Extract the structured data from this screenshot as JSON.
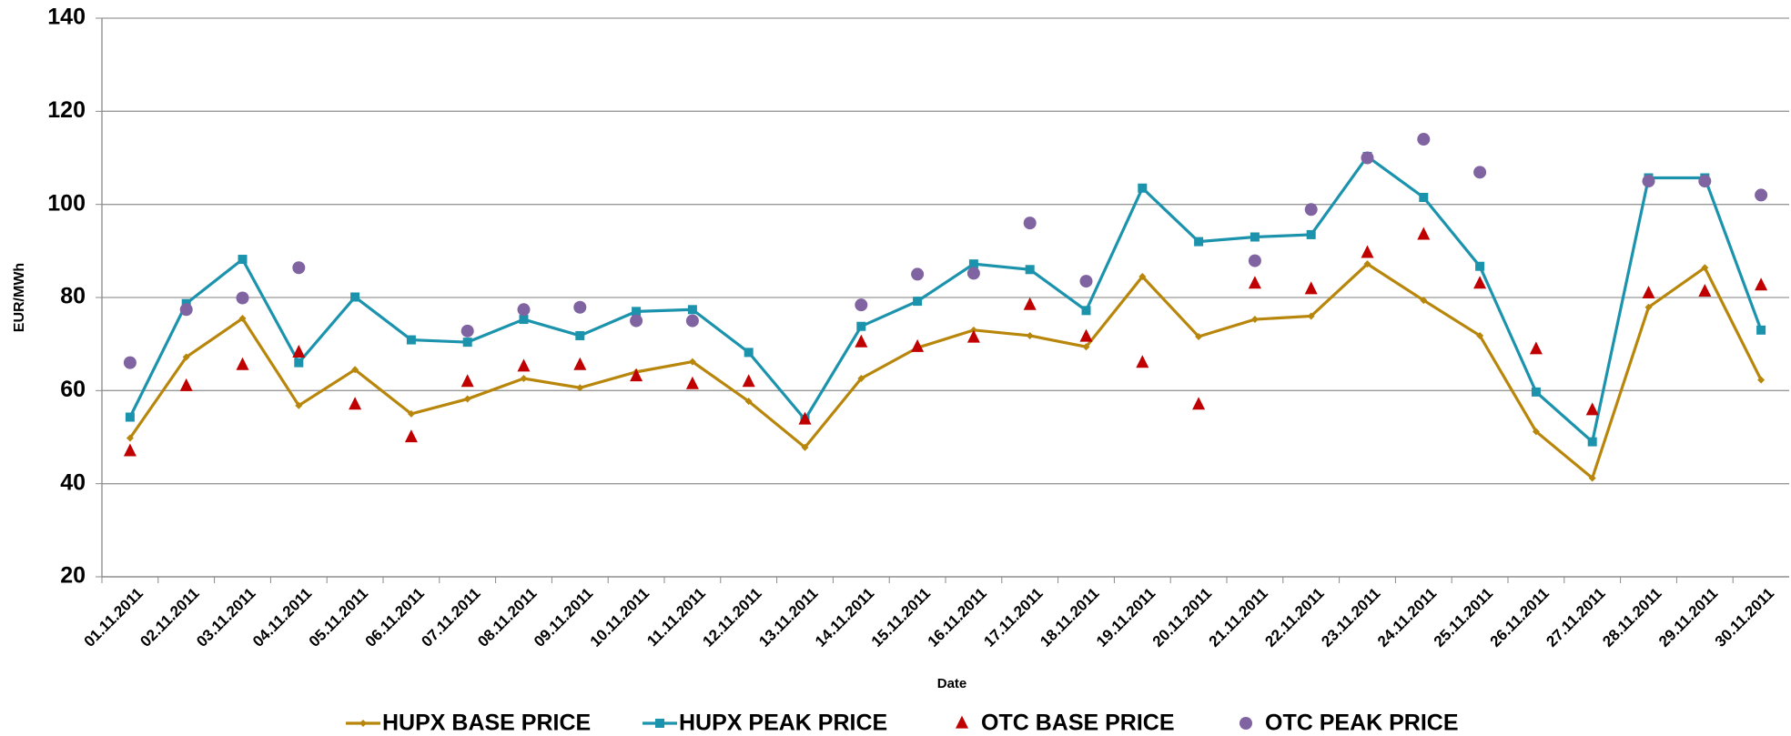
{
  "chart_data": {
    "type": "line",
    "y_label": "EUR/MWh",
    "x_label": "Date",
    "categories": [
      "01.11.2011",
      "02.11.2011",
      "03.11.2011",
      "04.11.2011",
      "05.11.2011",
      "06.11.2011",
      "07.11.2011",
      "08.11.2011",
      "09.11.2011",
      "10.11.2011",
      "11.11.2011",
      "12.11.2011",
      "13.11.2011",
      "14.11.2011",
      "15.11.2011",
      "16.11.2011",
      "17.11.2011",
      "18.11.2011",
      "19.11.2011",
      "20.11.2011",
      "21.11.2011",
      "22.11.2011",
      "23.11.2011",
      "24.11.2011",
      "25.11.2011",
      "26.11.2011",
      "27.11.2011",
      "28.11.2011",
      "29.11.2011",
      "30.11.2011"
    ],
    "series": [
      {
        "name": "HUPX BASE PRICE",
        "color": "#b8860b",
        "marker": "diamond",
        "line": true,
        "values": [
          49.8,
          67.2,
          75.5,
          56.8,
          64.5,
          55,
          58.2,
          62.6,
          60.6,
          64,
          66.2,
          57.7,
          47.8,
          62.6,
          69.2,
          73,
          71.8,
          69.4,
          84.5,
          71.6,
          75.3,
          76,
          87.2,
          79.4,
          71.8,
          51.2,
          41.2,
          77.9,
          86.4,
          62.3
        ]
      },
      {
        "name": "HUPX PEAK PRICE",
        "color": "#1b93ad",
        "marker": "square",
        "line": true,
        "values": [
          54.3,
          78.7,
          88.2,
          66,
          80.1,
          70.9,
          70.4,
          75.3,
          71.8,
          77,
          77.4,
          68.2,
          53.8,
          73.8,
          79.2,
          87.2,
          86,
          77.2,
          103.5,
          92,
          93,
          93.5,
          110.3,
          101.5,
          86.7,
          59.7,
          49,
          105.7,
          105.7,
          73
        ]
      },
      {
        "name": "OTC BASE PRICE",
        "color": "#c00000",
        "marker": "triangle",
        "line": false,
        "values": [
          47,
          61,
          65.5,
          68.2,
          57,
          50,
          61.9,
          65.2,
          65.5,
          63.1,
          61.4,
          61.9,
          53.8,
          70.4,
          69.4,
          71.4,
          78.4,
          71.6,
          66,
          57,
          83,
          81.8,
          89.6,
          93.5,
          83,
          68.9,
          55.8,
          80.9,
          81.3,
          82.6
        ]
      },
      {
        "name": "OTC PEAK PRICE",
        "color": "#8064a2",
        "marker": "circle",
        "line": false,
        "values": [
          66,
          77.4,
          79.9,
          86.4,
          null,
          null,
          72.8,
          77.4,
          77.9,
          75,
          75,
          null,
          null,
          78.4,
          85,
          85.2,
          96,
          83.5,
          null,
          null,
          87.9,
          98.9,
          110,
          114,
          106.9,
          null,
          null,
          105,
          105,
          102
        ]
      }
    ],
    "ylim": [
      20,
      140
    ],
    "yticks": [
      20,
      40,
      60,
      80,
      100,
      120,
      140
    ],
    "grid": true,
    "legend": "bottom"
  }
}
